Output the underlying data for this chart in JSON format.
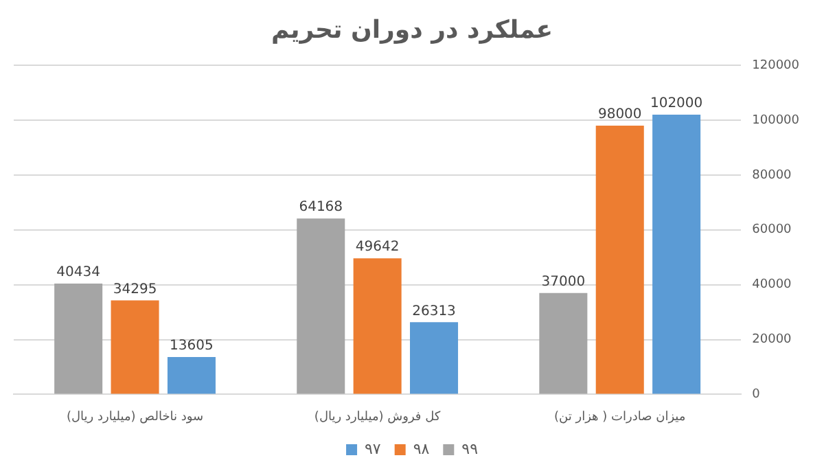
{
  "chart_data": {
    "type": "bar",
    "title": "عملکرد در دوران تحریم",
    "categories": [
      "سود ناخالص (میلیارد ریال)",
      "کل فروش (میلیارد ریال)",
      "میزان صادرات ( هزار تن)"
    ],
    "series": [
      {
        "name": "۹۹",
        "color": "#a5a5a5",
        "values": [
          40434,
          64168,
          37000
        ]
      },
      {
        "name": "۹۸",
        "color": "#ed7d31",
        "values": [
          34295,
          49642,
          98000
        ]
      },
      {
        "name": "۹۷",
        "color": "#5b9bd5",
        "values": [
          13605,
          26313,
          102000
        ]
      }
    ],
    "ylim": [
      0,
      120000
    ],
    "yticks": [
      0,
      20000,
      40000,
      60000,
      80000,
      100000,
      120000
    ],
    "grid": "y",
    "legend": "bottom",
    "data_labels": true
  }
}
